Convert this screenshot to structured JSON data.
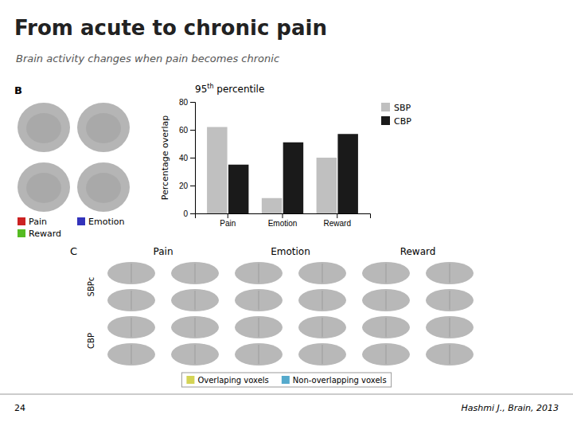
{
  "chart_data": {
    "type": "bar",
    "title": "From acute to chronic pain",
    "subtitle": "Brain activity changes when pain becomes chronic",
    "categories": [
      "Pain",
      "Emotion",
      "Reward"
    ],
    "series": [
      {
        "name": "SBP",
        "color": "#c0c0c0",
        "values": [
          62,
          11,
          40
        ]
      },
      {
        "name": "CBP",
        "color": "#1a1a1a",
        "values": [
          35,
          51,
          57
        ]
      }
    ],
    "ylabel": "Percentage overlap",
    "ylim": [
      0,
      80
    ],
    "yticks": [
      0,
      20,
      40,
      60,
      80
    ],
    "legend": "upper right",
    "annotations": [
      {
        "text": "B"
      },
      {
        "text": "95th percentile"
      },
      {
        "text": "C"
      },
      {
        "text": "Pain"
      },
      {
        "text": "Emotion"
      },
      {
        "text": "Reward"
      },
      {
        "text": "SBPc"
      },
      {
        "text": "CBP"
      },
      {
        "text": "Pain",
        "color": "#cc2222"
      },
      {
        "text": "Emotion",
        "color": "#3333bb"
      },
      {
        "text": "Reward",
        "color": "#55bb22"
      },
      {
        "text": "Overlaping voxels",
        "color": "#d4d455"
      },
      {
        "text": "Non-overlapping voxels",
        "color": "#55aacc"
      },
      {
        "text": "24"
      },
      {
        "text": "Hashmi J., Brain, 2013"
      }
    ]
  }
}
